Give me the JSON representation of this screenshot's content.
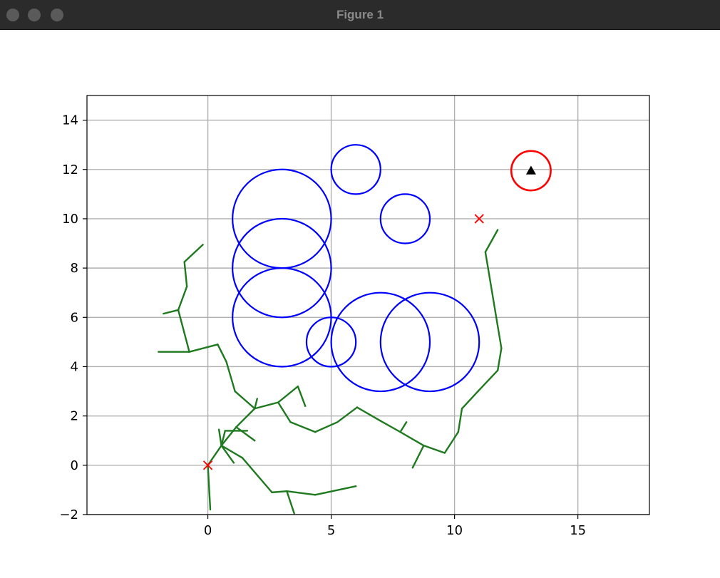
{
  "window": {
    "title": "Figure 1"
  },
  "colors": {
    "obstacle": "#0000ff",
    "goal_circle": "#ff0000",
    "tree": "#1f7a1f",
    "marker": "#ff0000",
    "robot": "#000000",
    "grid": "#b0b0b0"
  },
  "chart_data": {
    "type": "scatter",
    "title": "",
    "xlabel": "",
    "ylabel": "",
    "xlim": [
      -4.9,
      17.9
    ],
    "ylim": [
      -2,
      15
    ],
    "grid": true,
    "xticks": [
      0,
      5,
      10,
      15
    ],
    "yticks": [
      -2,
      0,
      2,
      4,
      6,
      8,
      10,
      12,
      14
    ],
    "xtick_labels": [
      "0",
      "5",
      "10",
      "15"
    ],
    "ytick_labels": [
      "−2",
      "0",
      "2",
      "4",
      "6",
      "8",
      "10",
      "12",
      "14"
    ],
    "obstacles": [
      {
        "x": 3,
        "y": 10,
        "r": 2
      },
      {
        "x": 3,
        "y": 8,
        "r": 2
      },
      {
        "x": 3,
        "y": 6,
        "r": 2
      },
      {
        "x": 6,
        "y": 12,
        "r": 1
      },
      {
        "x": 8,
        "y": 10,
        "r": 1
      },
      {
        "x": 5,
        "y": 5,
        "r": 1
      },
      {
        "x": 7,
        "y": 5,
        "r": 2
      },
      {
        "x": 9,
        "y": 5,
        "r": 2
      }
    ],
    "goal_region": {
      "x": 13.1,
      "y": 11.95,
      "r": 0.8
    },
    "start": {
      "x": 0,
      "y": 0
    },
    "goal": {
      "x": 11,
      "y": 10
    },
    "robot": {
      "x": 13.1,
      "y": 11.95
    },
    "tree_edges": [
      [
        [
          0,
          0
        ],
        [
          0.1,
          -1.8
        ]
      ],
      [
        [
          0,
          0
        ],
        [
          0.55,
          0.8
        ]
      ],
      [
        [
          0.55,
          0.8
        ],
        [
          0.45,
          1.45
        ]
      ],
      [
        [
          0.55,
          0.8
        ],
        [
          0.7,
          1.4
        ]
      ],
      [
        [
          0.7,
          1.4
        ],
        [
          1.6,
          1.4
        ]
      ],
      [
        [
          0.55,
          0.8
        ],
        [
          1.05,
          0.1
        ]
      ],
      [
        [
          0.55,
          0.8
        ],
        [
          1.15,
          1.55
        ]
      ],
      [
        [
          1.15,
          1.55
        ],
        [
          1.9,
          1.0
        ]
      ],
      [
        [
          1.15,
          1.55
        ],
        [
          1.9,
          2.3
        ]
      ],
      [
        [
          1.9,
          2.3
        ],
        [
          2.0,
          2.7
        ]
      ],
      [
        [
          1.9,
          2.3
        ],
        [
          2.85,
          2.55
        ]
      ],
      [
        [
          2.85,
          2.55
        ],
        [
          3.65,
          3.2
        ]
      ],
      [
        [
          3.65,
          3.2
        ],
        [
          3.95,
          2.4
        ]
      ],
      [
        [
          2.85,
          2.55
        ],
        [
          3.35,
          1.75
        ]
      ],
      [
        [
          3.35,
          1.75
        ],
        [
          4.35,
          1.35
        ]
      ],
      [
        [
          4.35,
          1.35
        ],
        [
          5.25,
          1.75
        ]
      ],
      [
        [
          5.25,
          1.75
        ],
        [
          6.05,
          2.35
        ]
      ],
      [
        [
          6.05,
          2.35
        ],
        [
          7.0,
          1.8
        ]
      ],
      [
        [
          7.0,
          1.8
        ],
        [
          7.8,
          1.35
        ]
      ],
      [
        [
          7.8,
          1.35
        ],
        [
          8.05,
          1.75
        ]
      ],
      [
        [
          7.8,
          1.35
        ],
        [
          8.75,
          0.8
        ]
      ],
      [
        [
          8.75,
          0.8
        ],
        [
          8.3,
          -0.1
        ]
      ],
      [
        [
          8.75,
          0.8
        ],
        [
          9.6,
          0.5
        ]
      ],
      [
        [
          9.6,
          0.5
        ],
        [
          10.15,
          1.35
        ]
      ],
      [
        [
          10.15,
          1.35
        ],
        [
          10.3,
          2.3
        ]
      ],
      [
        [
          10.3,
          2.3
        ],
        [
          10.95,
          3.0
        ]
      ],
      [
        [
          10.95,
          3.0
        ],
        [
          11.75,
          3.85
        ]
      ],
      [
        [
          11.75,
          3.85
        ],
        [
          11.9,
          4.75
        ]
      ],
      [
        [
          11.9,
          4.75
        ],
        [
          11.25,
          8.65
        ]
      ],
      [
        [
          11.25,
          8.65
        ],
        [
          11.75,
          9.55
        ]
      ],
      [
        [
          1.9,
          2.3
        ],
        [
          1.1,
          3.0
        ]
      ],
      [
        [
          1.1,
          3.0
        ],
        [
          0.75,
          4.2
        ]
      ],
      [
        [
          0.75,
          4.2
        ],
        [
          0.4,
          4.9
        ]
      ],
      [
        [
          0.4,
          4.9
        ],
        [
          -0.75,
          4.6
        ]
      ],
      [
        [
          -0.75,
          4.6
        ],
        [
          -2.0,
          4.6
        ]
      ],
      [
        [
          -0.75,
          4.6
        ],
        [
          -1.2,
          6.3
        ]
      ],
      [
        [
          -1.2,
          6.3
        ],
        [
          -1.8,
          6.15
        ]
      ],
      [
        [
          -1.2,
          6.3
        ],
        [
          -0.85,
          7.25
        ]
      ],
      [
        [
          -0.85,
          7.25
        ],
        [
          -0.95,
          8.25
        ]
      ],
      [
        [
          -0.95,
          8.25
        ],
        [
          -0.2,
          8.95
        ]
      ],
      [
        [
          0.55,
          0.8
        ],
        [
          1.4,
          0.3
        ]
      ],
      [
        [
          1.4,
          0.3
        ],
        [
          2.6,
          -1.1
        ]
      ],
      [
        [
          2.6,
          -1.1
        ],
        [
          3.2,
          -1.05
        ]
      ],
      [
        [
          3.2,
          -1.05
        ],
        [
          3.5,
          -1.95
        ]
      ],
      [
        [
          3.2,
          -1.05
        ],
        [
          4.35,
          -1.2
        ]
      ],
      [
        [
          4.35,
          -1.2
        ],
        [
          6.0,
          -0.85
        ]
      ]
    ]
  }
}
